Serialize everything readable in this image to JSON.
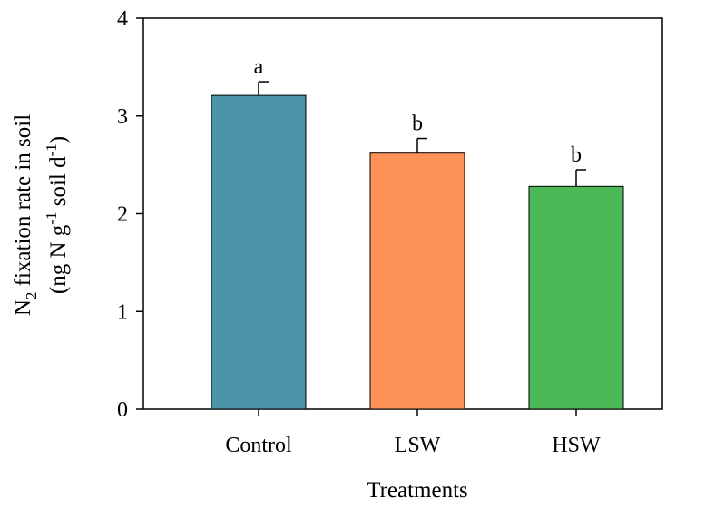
{
  "chart_data": {
    "type": "bar",
    "categories": [
      "Control",
      "LSW",
      "HSW"
    ],
    "values": [
      3.21,
      2.62,
      2.28
    ],
    "errors": [
      0.14,
      0.15,
      0.17
    ],
    "significance_letters": [
      "a",
      "b",
      "b"
    ],
    "colors": [
      "#4a93a8",
      "#fd9256",
      "#4bb956"
    ],
    "xlabel": "Treatments",
    "ylabel": {
      "line1": {
        "a": "N",
        "sub": "2",
        "b": " fixation rate in soil"
      },
      "line2": {
        "a": "(ng N g",
        "sup1": "-1",
        "b": " soil d",
        "sup2": "-1",
        "c": ")"
      }
    },
    "ylim": [
      0,
      4
    ],
    "yticks": [
      "0",
      "1",
      "2",
      "3",
      "4"
    ],
    "grid": false,
    "legend": "none"
  }
}
